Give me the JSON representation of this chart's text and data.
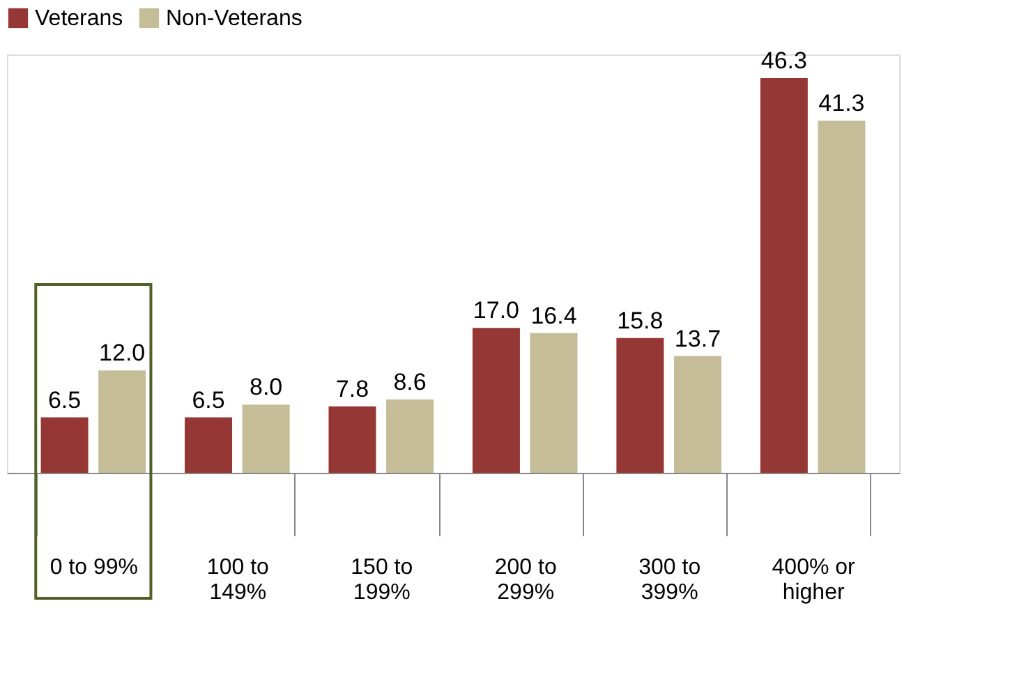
{
  "chart_data": {
    "type": "bar",
    "categories": [
      "0 to 99%",
      "100 to\n149%",
      "150 to\n199%",
      "200 to\n299%",
      "300 to\n399%",
      "400% or\nhigher"
    ],
    "series": [
      {
        "name": "Veterans",
        "color": "#953735",
        "values": [
          6.5,
          6.5,
          7.8,
          17.0,
          15.8,
          46.3
        ],
        "value_labels": [
          "6.5",
          "6.5",
          "7.8",
          "17.0",
          "15.8",
          "46.3"
        ]
      },
      {
        "name": "Non-Veterans",
        "color": "#c4bd97",
        "values": [
          12.0,
          8.0,
          8.6,
          16.4,
          13.7,
          41.3
        ],
        "value_labels": [
          "12.0",
          "8.0",
          "8.6",
          "16.4",
          "13.7",
          "41.3"
        ]
      }
    ],
    "legend": "top",
    "grid": false
  }
}
